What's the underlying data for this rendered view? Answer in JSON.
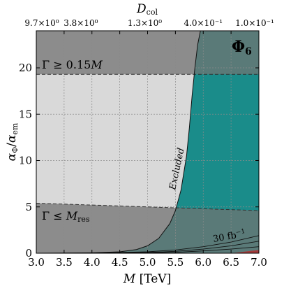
{
  "chart_data": {
    "type": "area",
    "title": "Φ6",
    "xlabel": "M [TeV]",
    "ylabel": "αΦ/αem",
    "top_xlabel": "Dcol",
    "xlim": [
      3.0,
      7.0
    ],
    "ylim": [
      0,
      24
    ],
    "grid": true,
    "x_ticks": [
      "3.0",
      "3.5",
      "4.0",
      "4.5",
      "5.0",
      "5.5",
      "6.0",
      "6.5",
      "7.0"
    ],
    "y_ticks": [
      "0",
      "5",
      "10",
      "15",
      "20"
    ],
    "top_ticks": [
      {
        "x": 3.0,
        "label": "9.7×10⁰"
      },
      {
        "x": 3.8,
        "label": "3.8×10⁰"
      },
      {
        "x": 4.95,
        "label": "1.3×10⁰"
      },
      {
        "x": 6.0,
        "label": "4.0×10⁻¹"
      },
      {
        "x": 6.9,
        "label": "1.0×10⁻¹"
      }
    ],
    "regions": {
      "upper_width_boundary": {
        "label": "Γ ≥ 0.15M",
        "x": [
          3.0,
          7.0
        ],
        "y": [
          19.3,
          19.3
        ]
      },
      "lower_width_boundary": {
        "label": "Γ ≤ Mres",
        "x": [
          3.0,
          4.0,
          5.0,
          6.0,
          7.0
        ],
        "y": [
          5.4,
          5.2,
          5.0,
          4.8,
          4.6
        ]
      },
      "excluded_boundary": {
        "label": "Excluded",
        "x": [
          3.0,
          4.0,
          4.5,
          4.8,
          5.0,
          5.2,
          5.4,
          5.5,
          5.6,
          5.7,
          5.75,
          5.8,
          5.85,
          5.9,
          5.95
        ],
        "y": [
          0.0,
          0.05,
          0.15,
          0.4,
          0.8,
          1.6,
          3.2,
          4.6,
          6.8,
          10.5,
          13.5,
          17.0,
          20.0,
          22.5,
          24.0
        ]
      },
      "luminosity_curves": [
        {
          "name": "30 fb⁻¹",
          "x": [
            4.0,
            5.0,
            5.5,
            6.0,
            6.5,
            7.0
          ],
          "y": [
            0.0,
            0.15,
            0.35,
            0.7,
            1.2,
            1.9
          ]
        },
        {
          "name": "",
          "x": [
            4.0,
            5.0,
            5.5,
            6.0,
            6.5,
            7.0
          ],
          "y": [
            0.0,
            0.08,
            0.2,
            0.45,
            0.8,
            1.3
          ]
        },
        {
          "name": "",
          "x": [
            4.0,
            5.0,
            5.5,
            6.0,
            6.5,
            7.0
          ],
          "y": [
            0.0,
            0.04,
            0.1,
            0.25,
            0.45,
            0.7
          ]
        }
      ]
    },
    "colors": {
      "width_excluded": "#8c8c8c",
      "allowed_light": "#d9d9d9",
      "allowed_teal": "#1a8c8a",
      "teal_dark": "#5a7a78",
      "excluded_red": "#b03030",
      "grid": "#8a8a8a"
    }
  }
}
